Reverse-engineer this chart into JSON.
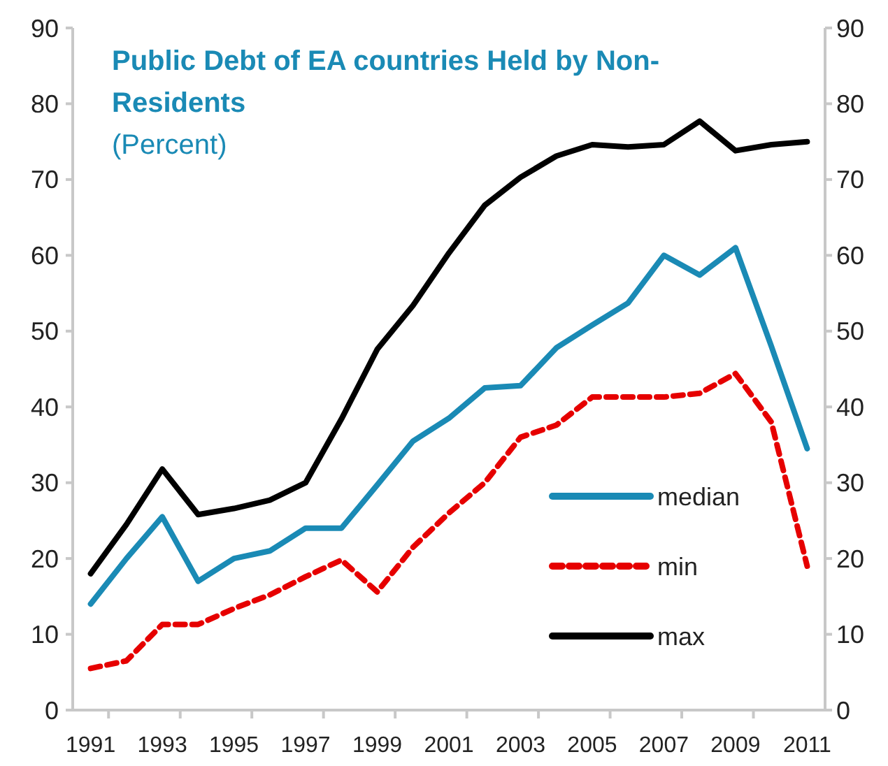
{
  "chart_data": {
    "type": "line",
    "title": "Public Debt of EA countries Held by Non-Residents",
    "subtitle": "(Percent)",
    "categories": [
      "1991",
      null,
      "1993",
      null,
      "1995",
      null,
      "1997",
      null,
      "1999",
      null,
      "2001",
      null,
      "2003",
      null,
      "2005",
      null,
      "2007",
      null,
      "2009",
      null,
      "2011"
    ],
    "series": [
      {
        "name": "median",
        "color": "#1a8ab5",
        "line_style": "solid",
        "values": [
          14,
          20,
          25.5,
          17,
          20,
          21,
          24,
          24,
          29.7,
          35.5,
          38.5,
          42.5,
          42.8,
          47.8,
          50.8,
          53.7,
          60,
          57.4,
          61,
          48,
          34.5
        ]
      },
      {
        "name": "min",
        "color": "#e60000",
        "line_style": "dashed",
        "values": [
          5.5,
          6.5,
          11.3,
          11.3,
          13.4,
          15.2,
          17.6,
          19.8,
          15.6,
          21.5,
          26,
          30,
          36,
          37.6,
          41.3,
          41.3,
          41.3,
          41.8,
          44.4,
          38,
          19
        ]
      },
      {
        "name": "max",
        "color": "#000000",
        "line_style": "solid",
        "values": [
          18,
          24.5,
          31.8,
          25.8,
          26.6,
          27.7,
          30,
          38.4,
          47.6,
          53.4,
          60.3,
          66.6,
          70.3,
          73.1,
          74.6,
          74.3,
          74.6,
          77.7,
          73.8,
          74.6,
          75
        ]
      }
    ],
    "ylim": [
      0,
      90
    ],
    "yticks": [
      0,
      10,
      20,
      30,
      40,
      50,
      60,
      70,
      80,
      90
    ],
    "y2lim": [
      0,
      90
    ],
    "y2ticks": [
      0,
      10,
      20,
      30,
      40,
      50,
      60,
      70,
      80,
      90
    ],
    "grid": false,
    "legend": "bottom right"
  }
}
